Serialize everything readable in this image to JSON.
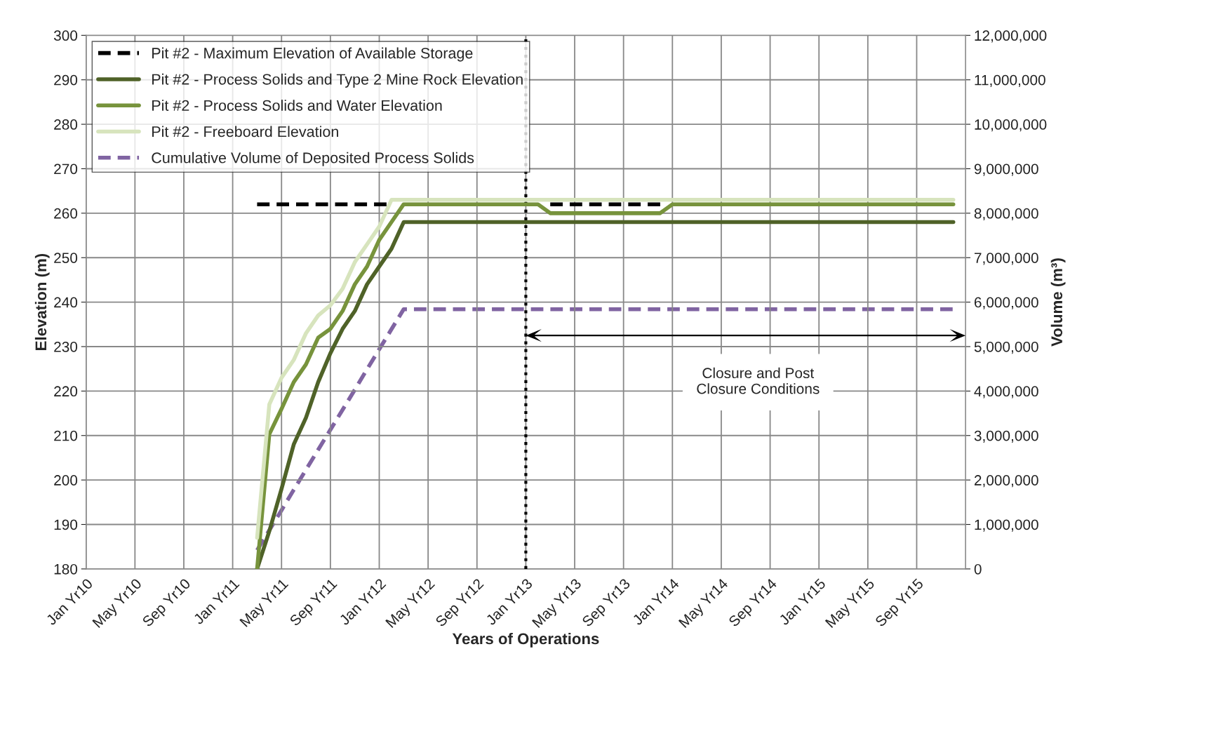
{
  "chart_data": {
    "type": "line",
    "xlabel": "Years of Operations",
    "ylabel": "Elevation (m)",
    "y2label": "Volume (m³)",
    "categories": [
      "Jan Yr10",
      null,
      null,
      null,
      "May Yr10",
      null,
      null,
      null,
      "Sep Yr10",
      null,
      null,
      null,
      "Jan Yr11",
      null,
      null,
      null,
      "May Yr11",
      null,
      null,
      null,
      "Sep Yr11",
      null,
      null,
      null,
      "Jan Yr12",
      null,
      null,
      null,
      "May Yr12",
      null,
      null,
      null,
      "Sep Yr12",
      null,
      null,
      null,
      "Jan Yr13",
      null,
      null,
      null,
      "May Yr13",
      null,
      null,
      null,
      "Sep Yr13",
      null,
      null,
      null,
      "Jan Yr14",
      null,
      null,
      null,
      "May Yr14",
      null,
      null,
      null,
      "Sep Yr14",
      null,
      null,
      null,
      "Jan Yr15",
      null,
      null,
      null,
      "May Yr15",
      null,
      null,
      null,
      "Sep Yr15",
      null,
      null,
      null
    ],
    "ylim": [
      180,
      300
    ],
    "yticks": [
      180,
      190,
      200,
      210,
      220,
      230,
      240,
      250,
      260,
      270,
      280,
      290,
      300
    ],
    "y2lim": [
      0,
      12000000
    ],
    "y2ticks": [
      {
        "value": 0,
        "label": "0"
      },
      {
        "value": 1000000,
        "label": "1,000,000"
      },
      {
        "value": 2000000,
        "label": "2,000,000"
      },
      {
        "value": 3000000,
        "label": "3,000,000"
      },
      {
        "value": 4000000,
        "label": "4,000,000"
      },
      {
        "value": 5000000,
        "label": "5,000,000"
      },
      {
        "value": 6000000,
        "label": "6,000,000"
      },
      {
        "value": 7000000,
        "label": "7,000,000"
      },
      {
        "value": 8000000,
        "label": "8,000,000"
      },
      {
        "value": 9000000,
        "label": "9,000,000"
      },
      {
        "value": 10000000,
        "label": "10,000,000"
      },
      {
        "value": 11000000,
        "label": "11,000,000"
      },
      {
        "value": 12000000,
        "label": "12,000,000"
      }
    ],
    "grid": true,
    "legend": "top left",
    "marker": "none",
    "series": [
      {
        "name": "Pit #2 - Maximum Elevation of Available Storage",
        "color": "#000000",
        "line_style": "dashed",
        "values": [
          null,
          null,
          null,
          null,
          null,
          null,
          null,
          null,
          null,
          null,
          null,
          null,
          null,
          null,
          262,
          262,
          262,
          262,
          262,
          262,
          262,
          262,
          262,
          262,
          262,
          262,
          null,
          null,
          null,
          null,
          null,
          null,
          null,
          null,
          null,
          null,
          null,
          null,
          262,
          262,
          262,
          262,
          262,
          262,
          262,
          262,
          262,
          262,
          null,
          null,
          null,
          null,
          null,
          null,
          null,
          null,
          null,
          null,
          null,
          null,
          null,
          null,
          null,
          null,
          null,
          null,
          null,
          null,
          null,
          null,
          null,
          null
        ]
      },
      {
        "name": "Pit #2 - Process Solids and Type 2 Mine Rock Elevation",
        "color": "#4f6228",
        "line_style": "solid",
        "values": [
          null,
          null,
          null,
          null,
          null,
          null,
          null,
          null,
          null,
          null,
          null,
          null,
          null,
          null,
          180,
          188.5,
          198,
          208,
          214,
          222,
          228.5,
          234,
          238,
          244,
          248,
          252,
          258,
          258,
          258,
          258,
          258,
          258,
          258,
          258,
          258,
          258,
          258,
          258,
          258,
          258,
          258,
          258,
          258,
          258,
          258,
          258,
          258,
          258,
          258,
          258,
          258,
          258,
          258,
          258,
          258,
          258,
          258,
          258,
          258,
          258,
          258,
          258,
          258,
          258,
          258,
          258,
          258,
          258,
          258,
          258,
          258,
          258
        ]
      },
      {
        "name": "Pit #2 - Process Solids and Water Elevation",
        "color": "#77933c",
        "line_style": "solid",
        "values": [
          null,
          null,
          null,
          null,
          null,
          null,
          null,
          null,
          null,
          null,
          null,
          null,
          null,
          null,
          180,
          210.3,
          216,
          222,
          226,
          232,
          234,
          238,
          244,
          248,
          254,
          258,
          262,
          262,
          262,
          262,
          262,
          262,
          262,
          262,
          262,
          262,
          262,
          262,
          260,
          260,
          260,
          260,
          260,
          260,
          260,
          260,
          260,
          260,
          262,
          262,
          262,
          262,
          262,
          262,
          262,
          262,
          262,
          262,
          262,
          262,
          262,
          262,
          262,
          262,
          262,
          262,
          262,
          262,
          262,
          262,
          262,
          262
        ]
      },
      {
        "name": "Pit #2 - Freeboard Elevation",
        "color": "#d7e4bd",
        "line_style": "solid",
        "values": [
          null,
          null,
          null,
          null,
          null,
          null,
          null,
          null,
          null,
          null,
          null,
          null,
          null,
          null,
          187,
          217,
          223,
          227,
          233,
          237,
          239.3,
          243,
          249,
          253,
          257,
          263,
          263,
          263,
          263,
          263,
          263,
          263,
          263,
          263,
          263,
          263,
          263,
          263,
          263,
          263,
          263,
          263,
          263,
          263,
          263,
          263,
          263,
          263,
          263,
          263,
          263,
          263,
          263,
          263,
          263,
          263,
          263,
          263,
          263,
          263,
          263,
          263,
          263,
          263,
          263,
          263,
          263,
          263,
          263,
          263,
          263,
          263
        ]
      },
      {
        "name": "Cumulative Volume of Deposited Process Solids",
        "color": "#8064a2",
        "line_style": "dashed",
        "axis": "y2",
        "values": [
          null,
          null,
          null,
          null,
          null,
          null,
          null,
          null,
          null,
          null,
          null,
          null,
          null,
          null,
          420000,
          870000,
          1320000,
          1780000,
          2230000,
          2680000,
          3130000,
          3580000,
          4030000,
          4490000,
          4940000,
          5390000,
          5840000,
          5840000,
          5840000,
          5840000,
          5840000,
          5840000,
          5840000,
          5840000,
          5840000,
          5840000,
          5840000,
          5840000,
          5840000,
          5840000,
          5840000,
          5840000,
          5840000,
          5840000,
          5840000,
          5840000,
          5840000,
          5840000,
          5840000,
          5840000,
          5840000,
          5840000,
          5840000,
          5840000,
          5840000,
          5840000,
          5840000,
          5840000,
          5840000,
          5840000,
          5840000,
          5840000,
          5840000,
          5840000,
          5840000,
          5840000,
          5840000,
          5840000,
          5840000,
          5840000,
          5840000,
          5840000
        ]
      }
    ],
    "ref_lines": [
      {
        "axis": "x",
        "value": "Jan Yr13",
        "color": "#000000",
        "line_style": "dotted"
      }
    ],
    "annotations": [
      "Closure and Post\nClosure Conditions"
    ]
  }
}
